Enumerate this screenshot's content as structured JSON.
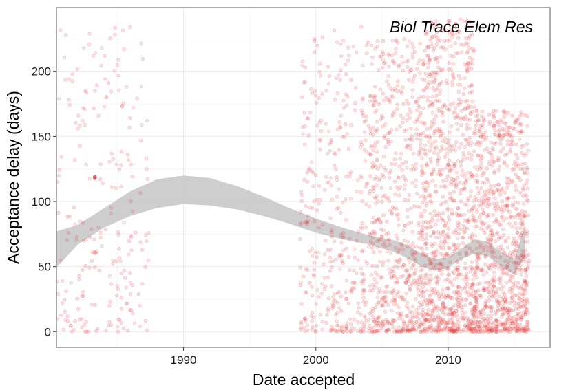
{
  "chart_data": {
    "type": "scatter",
    "title": "",
    "annotation": "Biol Trace Elem Res",
    "xlabel": "Date accepted",
    "ylabel": "Acceptance delay (days)",
    "x_unit": "year",
    "xlim": [
      1980.4,
      2017.7
    ],
    "ylim": [
      -12,
      249
    ],
    "x_ticks": [
      1990,
      2000,
      2010
    ],
    "y_ticks": [
      0,
      50,
      100,
      150,
      200
    ],
    "grid": true,
    "legend": "none",
    "colors": {
      "points": "#e8312f",
      "smooth_band": "#bdbdbd",
      "panel_border": "#7f7f7f",
      "grid_major": "#e9e9e9",
      "grid_minor": "#f4f4f4"
    },
    "smooth_band": {
      "x": [
        1980.4,
        1982,
        1984,
        1986,
        1988,
        1990,
        1992,
        1994,
        1996,
        1998,
        2000,
        2002,
        2004,
        2006,
        2007,
        2008,
        2009,
        2010,
        2011,
        2012,
        2013,
        2014,
        2015,
        2015.8
      ],
      "lower": [
        49,
        67,
        80,
        89,
        95,
        98,
        97,
        94,
        89,
        83,
        76,
        71,
        67,
        61,
        56,
        50,
        47,
        49,
        56,
        60,
        58,
        50,
        44,
        58
      ],
      "upper": [
        77,
        82,
        95,
        108,
        117,
        120,
        118,
        112,
        104,
        95,
        87,
        80,
        74,
        70,
        66,
        60,
        56,
        57,
        64,
        71,
        69,
        61,
        56,
        82
      ]
    },
    "points": {
      "opacity": 0.15,
      "highlight": [
        [
          1983.3,
          119
        ],
        [
          1983.3,
          118
        ]
      ],
      "groups": [
        {
          "x": [
            1980.4,
            1987.4
          ],
          "y": [
            0,
            235
          ],
          "n": 230
        },
        {
          "x": [
            1998.8,
            2004
          ],
          "y": [
            0,
            235
          ],
          "n": 380
        },
        {
          "x": [
            2004,
            2008
          ],
          "y": [
            0,
            225
          ],
          "n": 640
        },
        {
          "x": [
            2008,
            2012
          ],
          "y": [
            0,
            240
          ],
          "n": 980
        },
        {
          "x": [
            2012,
            2016.1
          ],
          "y": [
            0,
            170
          ],
          "n": 900
        }
      ]
    }
  }
}
